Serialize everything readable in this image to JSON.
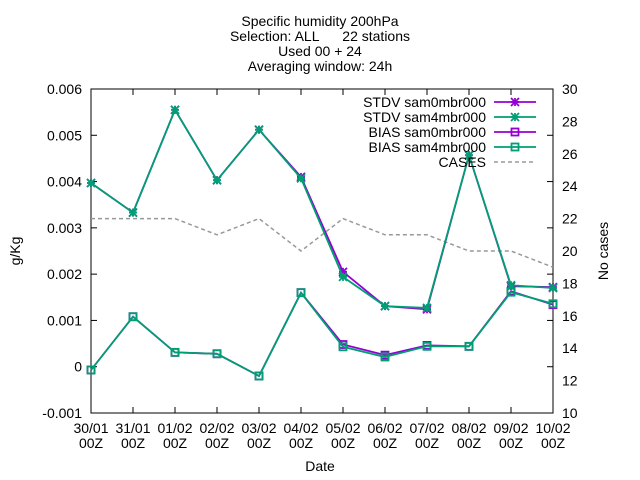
{
  "chart_data": {
    "type": "line",
    "title_lines": [
      "Specific humidity 200hPa",
      "Selection: ALL      22 stations",
      "Used 00 + 24",
      "Averaging window: 24h"
    ],
    "xlabel": "Date",
    "ylabel": "g/Kg",
    "y2label": "No cases",
    "categories": [
      "30/01 00Z",
      "31/01 00Z",
      "01/02 00Z",
      "02/02 00Z",
      "03/02 00Z",
      "04/02 00Z",
      "05/02 00Z",
      "06/02 00Z",
      "07/02 00Z",
      "08/02 00Z",
      "09/02 00Z",
      "10/02 00Z"
    ],
    "x_ticks": [
      {
        "top": "30/01",
        "bottom": "00Z"
      },
      {
        "top": "31/01",
        "bottom": "00Z"
      },
      {
        "top": "01/02",
        "bottom": "00Z"
      },
      {
        "top": "02/02",
        "bottom": "00Z"
      },
      {
        "top": "03/02",
        "bottom": "00Z"
      },
      {
        "top": "04/02",
        "bottom": "00Z"
      },
      {
        "top": "05/02",
        "bottom": "00Z"
      },
      {
        "top": "06/02",
        "bottom": "00Z"
      },
      {
        "top": "07/02",
        "bottom": "00Z"
      },
      {
        "top": "08/02",
        "bottom": "00Z"
      },
      {
        "top": "09/02",
        "bottom": "00Z"
      },
      {
        "top": "10/02",
        "bottom": "00Z"
      }
    ],
    "ylim": [
      -0.001,
      0.006
    ],
    "y_ticks": [
      "-0.001",
      "0",
      "0.001",
      "0.002",
      "0.003",
      "0.004",
      "0.005",
      "0.006"
    ],
    "y2lim": [
      10,
      30
    ],
    "y2_ticks": [
      "10",
      "12",
      "14",
      "16",
      "18",
      "20",
      "22",
      "24",
      "26",
      "28",
      "30"
    ],
    "grid": false,
    "legend_position": "top-right",
    "series": [
      {
        "name": "STDV sam0mbr000",
        "axis": "y",
        "color": "#9400d3",
        "marker": "star",
        "dash": false,
        "values": [
          0.00397,
          0.00333,
          0.00555,
          0.00403,
          0.00512,
          0.0041,
          0.00205,
          0.00131,
          0.00124,
          0.00457,
          0.00174,
          0.00172
        ]
      },
      {
        "name": "STDV sam4mbr000",
        "axis": "y",
        "color": "#009e73",
        "marker": "star",
        "dash": false,
        "values": [
          0.00397,
          0.00333,
          0.00555,
          0.00403,
          0.00512,
          0.00407,
          0.00194,
          0.00131,
          0.00127,
          0.00457,
          0.00176,
          0.0017
        ]
      },
      {
        "name": "BIAS sam0mbr000",
        "axis": "y",
        "color": "#9400d3",
        "marker": "square",
        "dash": false,
        "values": [
          -7e-05,
          0.00108,
          0.00031,
          0.00028,
          -0.0002,
          0.0016,
          0.00048,
          0.00025,
          0.00046,
          0.00044,
          0.00163,
          0.00134
        ]
      },
      {
        "name": "BIAS sam4mbr000",
        "axis": "y",
        "color": "#009e73",
        "marker": "square",
        "dash": false,
        "values": [
          -7e-05,
          0.00108,
          0.00031,
          0.00028,
          -0.0002,
          0.0016,
          0.00043,
          0.00021,
          0.00044,
          0.00044,
          0.00161,
          0.00136
        ]
      },
      {
        "name": "CASES",
        "axis": "y2",
        "color": "#999999",
        "marker": "none",
        "dash": true,
        "values": [
          22,
          22,
          22,
          21,
          22,
          20,
          22,
          21,
          21,
          20,
          20,
          19
        ]
      }
    ]
  }
}
